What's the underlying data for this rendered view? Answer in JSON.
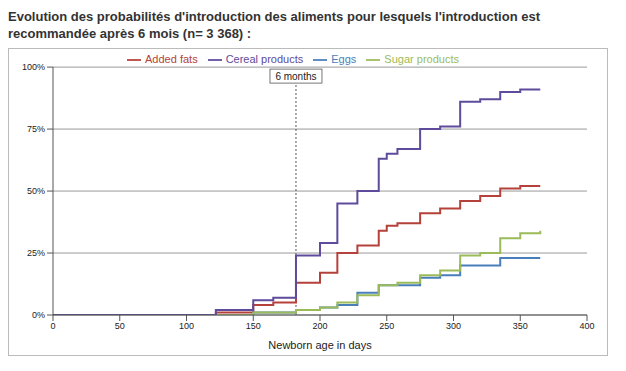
{
  "title": "Evolution des probabilités d'introduction des aliments pour lesquels l'introduction est recommandée après 6 mois (n= 3 368) :",
  "chart_data": {
    "type": "line",
    "line_style": "step",
    "x_label": "Newborn age in days",
    "x": [
      0,
      122,
      150,
      165,
      182,
      200,
      213,
      228,
      244,
      250,
      258,
      275,
      290,
      305,
      320,
      335,
      350,
      365
    ],
    "series": [
      {
        "name": "Added fats",
        "color": "#b5413b",
        "values": [
          0,
          1,
          4,
          5,
          13,
          17,
          25,
          28,
          34,
          36,
          37,
          41,
          43,
          46,
          48,
          51,
          52,
          52
        ]
      },
      {
        "name": "Eggs",
        "color": "#4a7ebb",
        "values": [
          0,
          0,
          1,
          1,
          2,
          3,
          4,
          9,
          12,
          12,
          12,
          15,
          16,
          20,
          20,
          23,
          23,
          23
        ]
      },
      {
        "name": "Sugar products",
        "color": "#9bbb59",
        "values": [
          0,
          0,
          1,
          1,
          2,
          3,
          5,
          8,
          12,
          12,
          13,
          16,
          18,
          24,
          25,
          31,
          33,
          34
        ]
      },
      {
        "name": "Cereal products",
        "color": "#5e4b9c",
        "values": [
          0,
          2,
          6,
          7,
          24,
          29,
          45,
          50,
          63,
          65,
          67,
          75,
          76,
          86,
          87,
          90,
          91,
          91
        ]
      }
    ],
    "xlim": [
      0,
      400
    ],
    "xticks": [
      0,
      50,
      100,
      150,
      200,
      250,
      300,
      350,
      400
    ],
    "ylim": [
      0,
      100
    ],
    "yticks": [
      {
        "value": 0,
        "label": "0%"
      },
      {
        "value": 25,
        "label": "25%"
      },
      {
        "value": 50,
        "label": "50%"
      },
      {
        "value": 75,
        "label": "75%"
      },
      {
        "value": 100,
        "label": "100%"
      }
    ],
    "grid": true,
    "legend": "top",
    "annotations": [
      {
        "x": 182,
        "text": "6 months",
        "line_style": "dashed"
      }
    ]
  }
}
